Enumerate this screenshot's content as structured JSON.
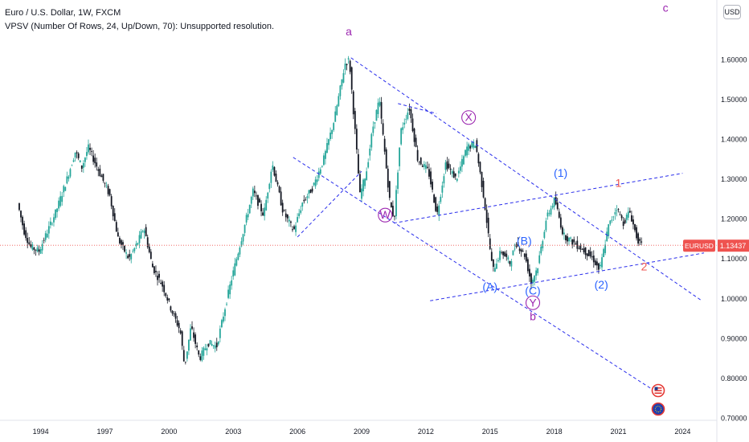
{
  "legend": {
    "symbol_line": "Euro / U.S. Dollar, 1W, FXCM",
    "indicator_line": "VPSV (Number Of Rows, 24, Up/Down, 70): Unsupported resolution."
  },
  "currency_button": "USD",
  "price_tag": {
    "symbol": "EURUSD",
    "value": "1.13437",
    "price": 1.13437,
    "color": "#ef5350"
  },
  "colors": {
    "up": "#26a69a",
    "down": "#131722",
    "trendline": "#2a2eec",
    "purple_label": "#9c27b0",
    "blue_label": "#2962ff",
    "red_label": "#ef5350",
    "axis_border": "#e0e3eb"
  },
  "chart_data": {
    "type": "candlestick",
    "title": "Euro / U.S. Dollar, 1W, FXCM",
    "xlim": [
      1992.1,
      2025.6
    ],
    "ylim": [
      0.695,
      1.75
    ],
    "y_ticks": [
      "1.60000",
      "1.50000",
      "1.40000",
      "1.30000",
      "1.20000",
      "1.10000",
      "1.00000",
      "0.90000",
      "0.80000",
      "0.70000"
    ],
    "y_tick_values": [
      1.6,
      1.5,
      1.4,
      1.3,
      1.2,
      1.1,
      1.0,
      0.9,
      0.8,
      0.7
    ],
    "x_ticks": [
      "1994",
      "1997",
      "2000",
      "2003",
      "2006",
      "2009",
      "2012",
      "2015",
      "2018",
      "2021",
      "2024"
    ],
    "x_tick_values": [
      1994,
      1997,
      2000,
      2003,
      2006,
      2009,
      2012,
      2015,
      2018,
      2021,
      2024
    ],
    "price_path": [
      [
        1993.0,
        1.24
      ],
      [
        1993.3,
        1.17
      ],
      [
        1993.6,
        1.13
      ],
      [
        1994.0,
        1.12
      ],
      [
        1994.4,
        1.17
      ],
      [
        1994.8,
        1.22
      ],
      [
        1995.3,
        1.3
      ],
      [
        1995.7,
        1.37
      ],
      [
        1996.0,
        1.33
      ],
      [
        1996.3,
        1.38
      ],
      [
        1996.8,
        1.32
      ],
      [
        1997.3,
        1.26
      ],
      [
        1997.7,
        1.15
      ],
      [
        1998.2,
        1.1
      ],
      [
        1998.6,
        1.14
      ],
      [
        1998.9,
        1.18
      ],
      [
        1999.3,
        1.08
      ],
      [
        1999.8,
        1.03
      ],
      [
        2000.2,
        0.97
      ],
      [
        2000.6,
        0.92
      ],
      [
        2000.8,
        0.83
      ],
      [
        2001.1,
        0.93
      ],
      [
        2001.5,
        0.85
      ],
      [
        2001.9,
        0.89
      ],
      [
        2002.3,
        0.88
      ],
      [
        2002.7,
        0.98
      ],
      [
        2003.0,
        1.05
      ],
      [
        2003.5,
        1.16
      ],
      [
        2004.0,
        1.27
      ],
      [
        2004.5,
        1.21
      ],
      [
        2004.9,
        1.34
      ],
      [
        2005.4,
        1.22
      ],
      [
        2005.9,
        1.17
      ],
      [
        2006.3,
        1.24
      ],
      [
        2006.8,
        1.28
      ],
      [
        2007.3,
        1.35
      ],
      [
        2007.8,
        1.45
      ],
      [
        2008.3,
        1.59
      ],
      [
        2008.5,
        1.6
      ],
      [
        2008.8,
        1.4
      ],
      [
        2009.0,
        1.26
      ],
      [
        2009.3,
        1.32
      ],
      [
        2009.6,
        1.43
      ],
      [
        2009.9,
        1.5
      ],
      [
        2010.4,
        1.24
      ],
      [
        2010.6,
        1.2
      ],
      [
        2010.9,
        1.42
      ],
      [
        2011.3,
        1.48
      ],
      [
        2011.7,
        1.35
      ],
      [
        2012.2,
        1.32
      ],
      [
        2012.6,
        1.21
      ],
      [
        2013.0,
        1.34
      ],
      [
        2013.5,
        1.3
      ],
      [
        2014.0,
        1.38
      ],
      [
        2014.4,
        1.39
      ],
      [
        2014.8,
        1.25
      ],
      [
        2015.2,
        1.07
      ],
      [
        2015.6,
        1.12
      ],
      [
        2016.0,
        1.09
      ],
      [
        2016.3,
        1.14
      ],
      [
        2016.7,
        1.11
      ],
      [
        2017.0,
        1.04
      ],
      [
        2017.3,
        1.08
      ],
      [
        2017.7,
        1.2
      ],
      [
        2018.1,
        1.25
      ],
      [
        2018.5,
        1.16
      ],
      [
        2019.0,
        1.14
      ],
      [
        2019.5,
        1.12
      ],
      [
        2019.9,
        1.1
      ],
      [
        2020.2,
        1.07
      ],
      [
        2020.6,
        1.18
      ],
      [
        2021.0,
        1.23
      ],
      [
        2021.3,
        1.19
      ],
      [
        2021.6,
        1.22
      ],
      [
        2021.9,
        1.16
      ],
      [
        2022.1,
        1.13437
      ]
    ],
    "trendlines": [
      {
        "from": [
          2008.5,
          1.605
        ],
        "to": [
          2024.9,
          0.995
        ]
      },
      {
        "from": [
          2005.8,
          1.355
        ],
        "to": [
          2022.6,
          0.772
        ]
      },
      {
        "from": [
          2010.7,
          1.49
        ],
        "to": [
          2012.5,
          1.465
        ]
      },
      {
        "from": [
          2010.5,
          1.19
        ],
        "to": [
          2024.0,
          1.315
        ]
      },
      {
        "from": [
          2012.2,
          0.995
        ],
        "to": [
          2025.0,
          1.115
        ]
      },
      {
        "from": [
          2006.0,
          1.155
        ],
        "to": [
          2009.0,
          1.32
        ]
      }
    ],
    "wave_labels": [
      {
        "text": "a",
        "x": 2008.4,
        "y": 1.67,
        "color": "purple",
        "circled": false
      },
      {
        "text": "c",
        "x": 2023.2,
        "y": 1.73,
        "color": "purple",
        "circled": false
      },
      {
        "text": "X",
        "x": 2014.0,
        "y": 1.455,
        "color": "purple",
        "circled": true
      },
      {
        "text": "W",
        "x": 2010.1,
        "y": 1.21,
        "color": "purple",
        "circled": true
      },
      {
        "text": "Y",
        "x": 2017.0,
        "y": 0.99,
        "color": "purple",
        "circled": true
      },
      {
        "text": "b",
        "x": 2017.0,
        "y": 0.955,
        "color": "purple",
        "circled": false
      },
      {
        "text": "(1)",
        "x": 2018.3,
        "y": 1.315,
        "color": "blue",
        "circled": false
      },
      {
        "text": "(2)",
        "x": 2020.2,
        "y": 1.035,
        "color": "blue",
        "circled": false
      },
      {
        "text": "(A)",
        "x": 2015.0,
        "y": 1.03,
        "color": "blue",
        "circled": false
      },
      {
        "text": "(B)",
        "x": 2016.6,
        "y": 1.145,
        "color": "blue",
        "circled": false
      },
      {
        "text": "(C)",
        "x": 2017.0,
        "y": 1.02,
        "color": "blue",
        "circled": false
      },
      {
        "text": "1",
        "x": 2021.0,
        "y": 1.29,
        "color": "red",
        "circled": false
      },
      {
        "text": "2",
        "x": 2022.2,
        "y": 1.08,
        "color": "red",
        "circled": false
      }
    ]
  }
}
